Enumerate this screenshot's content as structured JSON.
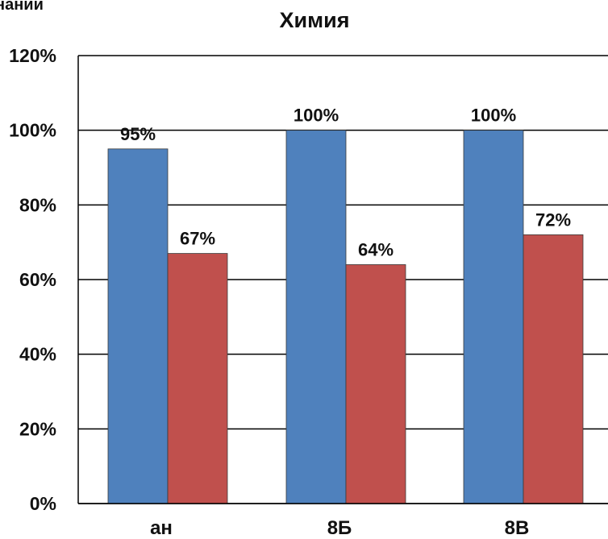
{
  "chart_data": {
    "type": "bar",
    "title": "Химия",
    "corner_text": "наний",
    "categories": [
      "ан",
      "8Б",
      "8В"
    ],
    "series": [
      {
        "values": [
          95,
          100,
          100
        ],
        "labels": [
          "95%",
          "100%",
          "100%"
        ],
        "color": "#4f81bd"
      },
      {
        "values": [
          67,
          64,
          72
        ],
        "labels": [
          "67%",
          "64%",
          "72%"
        ],
        "color": "#c0504d"
      }
    ],
    "y_ticks": [
      "0%",
      "20%",
      "40%",
      "60%",
      "80%",
      "100%",
      "120%"
    ],
    "ylim": [
      0,
      120
    ],
    "grid": true,
    "legend": "none"
  }
}
